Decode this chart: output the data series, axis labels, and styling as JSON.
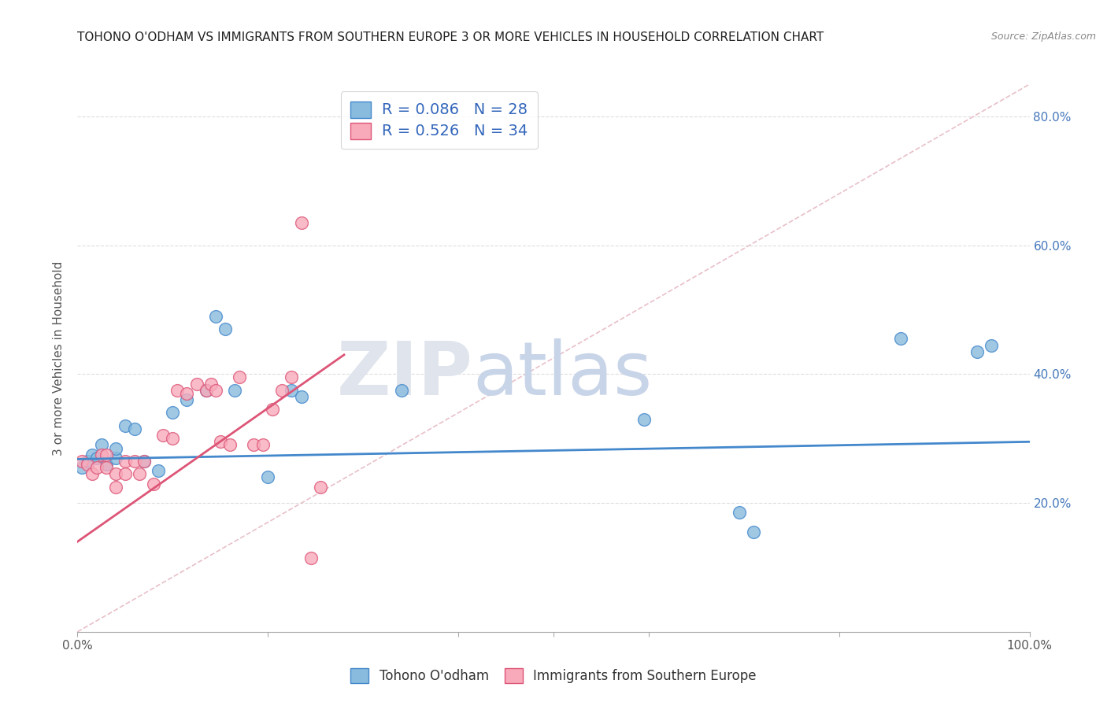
{
  "title": "TOHONO O'ODHAM VS IMMIGRANTS FROM SOUTHERN EUROPE 3 OR MORE VEHICLES IN HOUSEHOLD CORRELATION CHART",
  "source": "Source: ZipAtlas.com",
  "ylabel": "3 or more Vehicles in Household",
  "xlim": [
    0.0,
    1.0
  ],
  "ylim": [
    0.0,
    0.85
  ],
  "xticks": [
    0.0,
    0.2,
    0.4,
    0.5,
    0.6,
    0.8,
    1.0
  ],
  "yticks": [
    0.0,
    0.2,
    0.4,
    0.6,
    0.8
  ],
  "legend1_label": "R = 0.086   N = 28",
  "legend2_label": "R = 0.526   N = 34",
  "legend_group1": "Tohono O'odham",
  "legend_group2": "Immigrants from Southern Europe",
  "color_blue": "#88bbdd",
  "color_pink": "#f8aabb",
  "blue_scatter_x": [
    0.005,
    0.01,
    0.015,
    0.02,
    0.025,
    0.03,
    0.04,
    0.04,
    0.05,
    0.06,
    0.07,
    0.085,
    0.1,
    0.115,
    0.135,
    0.145,
    0.155,
    0.165,
    0.2,
    0.225,
    0.235,
    0.34,
    0.595,
    0.695,
    0.71,
    0.865,
    0.945,
    0.96
  ],
  "blue_scatter_y": [
    0.255,
    0.265,
    0.275,
    0.27,
    0.29,
    0.26,
    0.27,
    0.285,
    0.32,
    0.315,
    0.265,
    0.25,
    0.34,
    0.36,
    0.375,
    0.49,
    0.47,
    0.375,
    0.24,
    0.375,
    0.365,
    0.375,
    0.33,
    0.185,
    0.155,
    0.455,
    0.435,
    0.445
  ],
  "pink_scatter_x": [
    0.005,
    0.01,
    0.015,
    0.02,
    0.025,
    0.03,
    0.03,
    0.04,
    0.04,
    0.05,
    0.05,
    0.06,
    0.065,
    0.07,
    0.08,
    0.09,
    0.1,
    0.105,
    0.115,
    0.125,
    0.135,
    0.14,
    0.145,
    0.15,
    0.16,
    0.17,
    0.185,
    0.195,
    0.205,
    0.215,
    0.225,
    0.235,
    0.245,
    0.255
  ],
  "pink_scatter_y": [
    0.265,
    0.26,
    0.245,
    0.255,
    0.275,
    0.255,
    0.275,
    0.245,
    0.225,
    0.245,
    0.265,
    0.265,
    0.245,
    0.265,
    0.23,
    0.305,
    0.3,
    0.375,
    0.37,
    0.385,
    0.375,
    0.385,
    0.375,
    0.295,
    0.29,
    0.395,
    0.29,
    0.29,
    0.345,
    0.375,
    0.395,
    0.635,
    0.115,
    0.225
  ],
  "blue_line_x": [
    0.0,
    1.0
  ],
  "blue_line_y": [
    0.268,
    0.295
  ],
  "pink_line_x": [
    0.0,
    0.28
  ],
  "pink_line_y": [
    0.14,
    0.43
  ],
  "diagonal_line_x": [
    0.0,
    1.0
  ],
  "diagonal_line_y": [
    0.0,
    0.85
  ],
  "line_blue_color": "#4488cc",
  "line_pink_color": "#dd5577",
  "grid_color": "#dddddd"
}
